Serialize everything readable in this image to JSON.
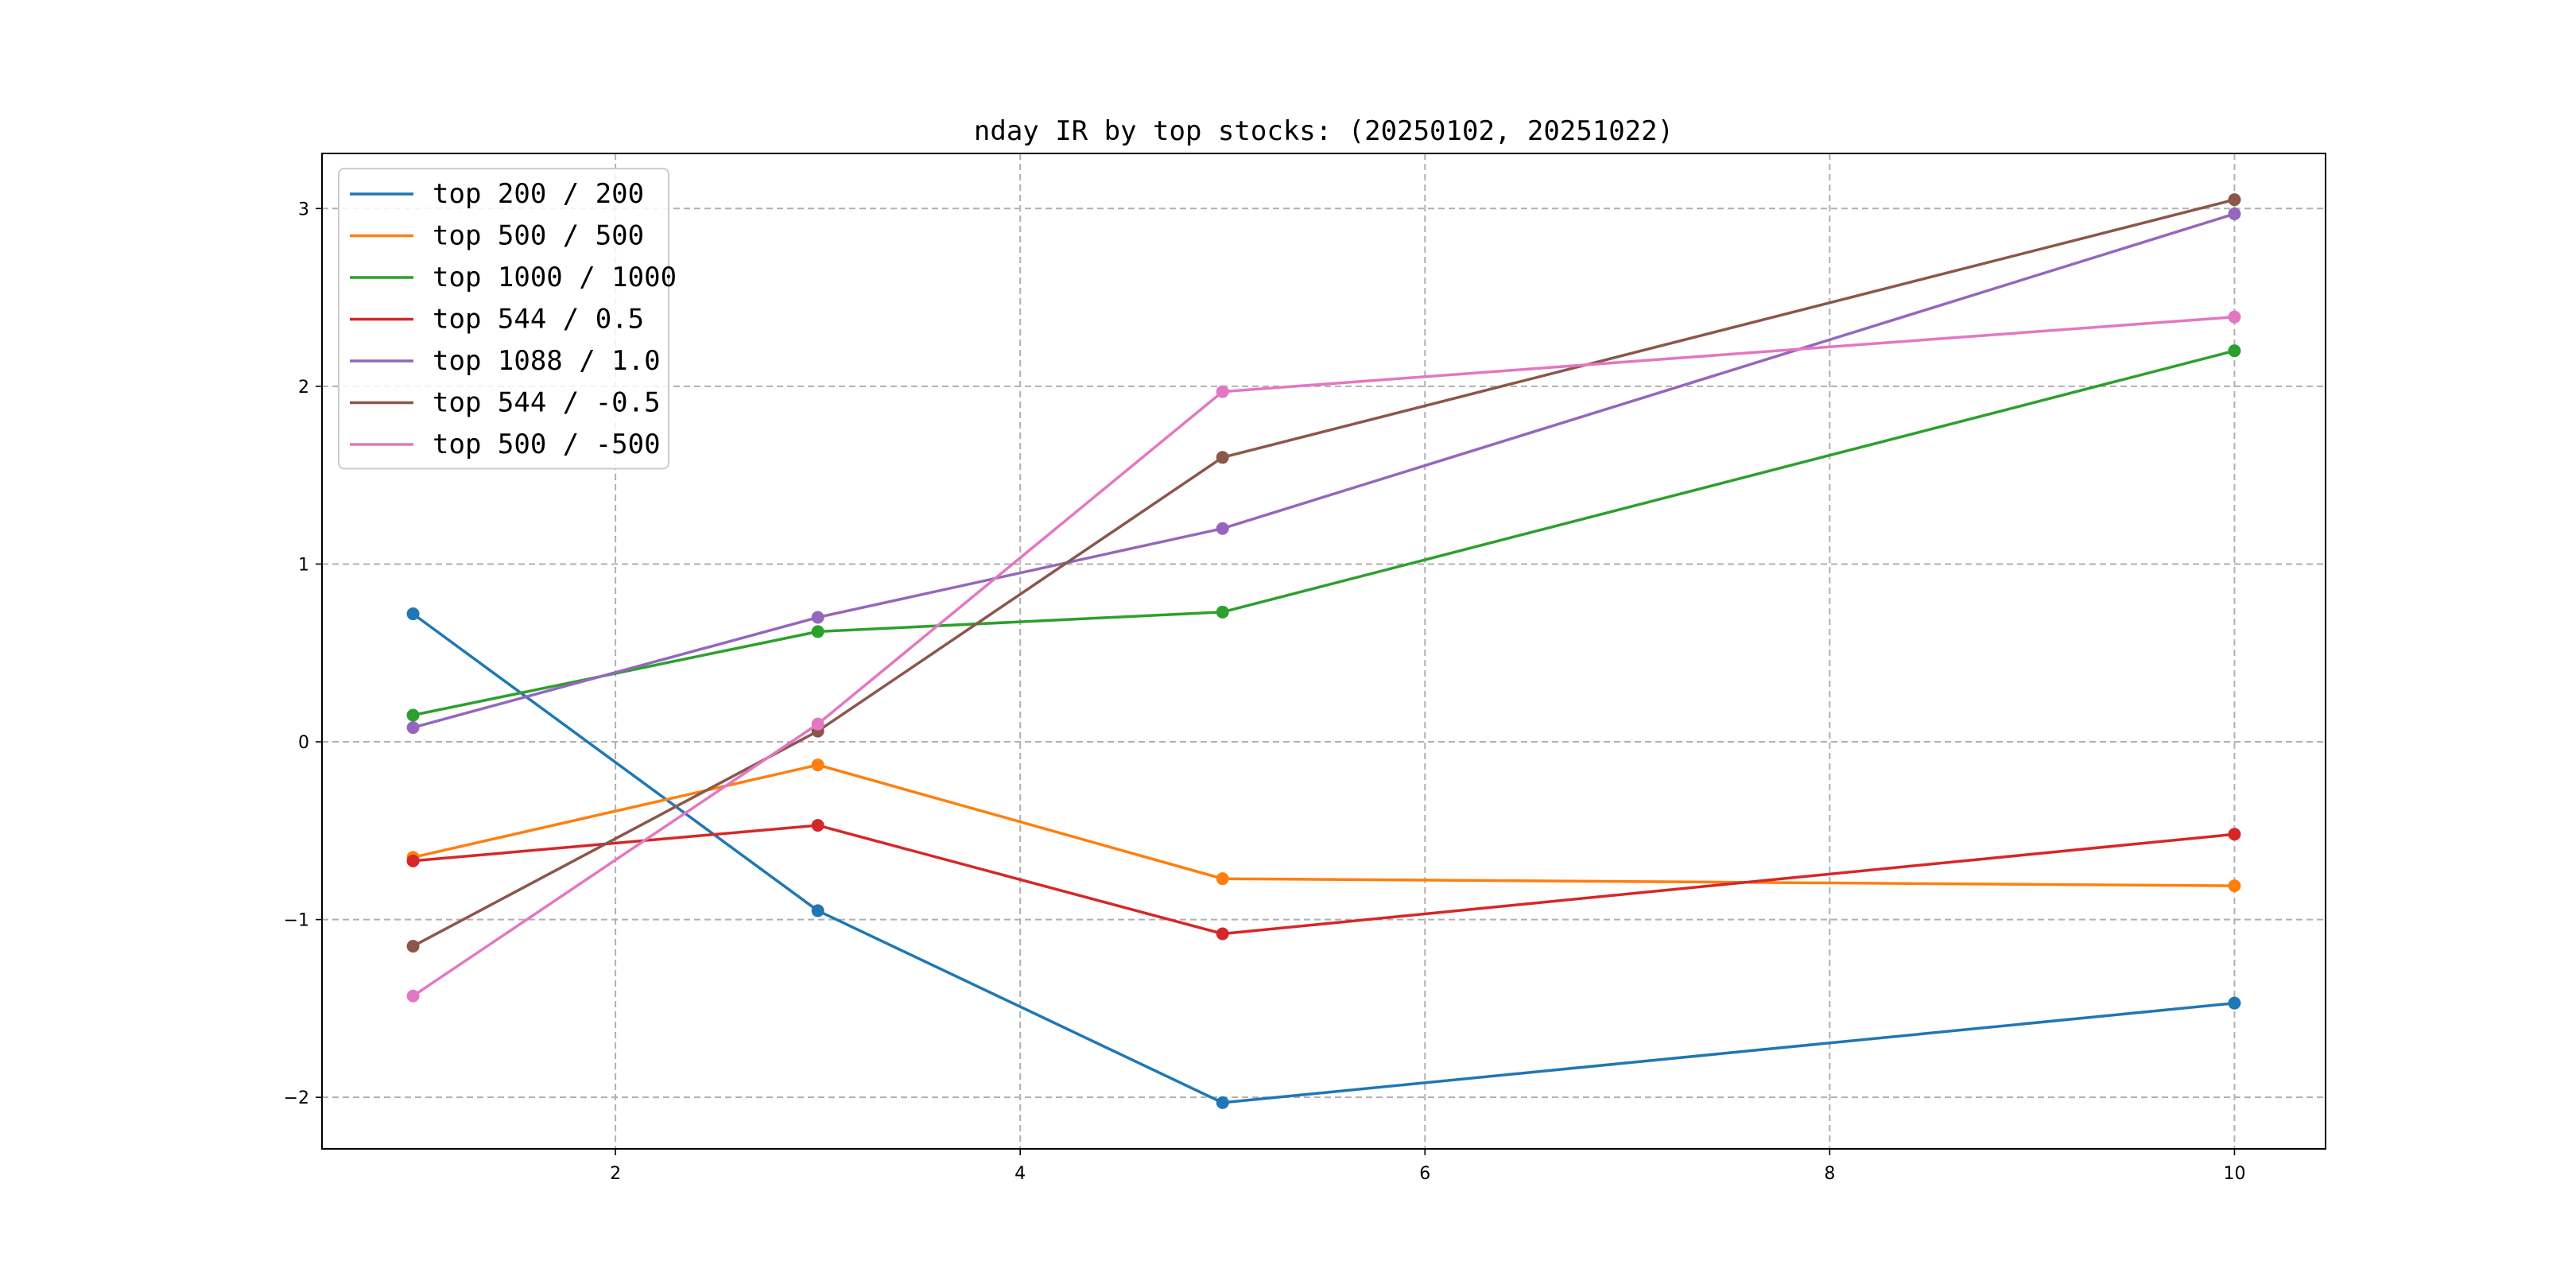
{
  "chart_data": {
    "type": "line",
    "title": "nday IR by top stocks: (20250102, 20251022)",
    "xlabel": "",
    "ylabel": "",
    "x": [
      1,
      3,
      5,
      10
    ],
    "xlim": [
      0.55,
      10.45
    ],
    "ylim": [
      -2.29,
      3.31
    ],
    "xticks": [
      2,
      4,
      6,
      8,
      10
    ],
    "yticks": [
      -2,
      -1,
      0,
      1,
      2,
      3
    ],
    "xtick_labels": [
      "2",
      "4",
      "6",
      "8",
      "10"
    ],
    "ytick_labels": [
      "−2",
      "−1",
      "0",
      "1",
      "2",
      "3"
    ],
    "grid": true,
    "legend_position": "top-left",
    "series": [
      {
        "name": "top 200 / 200",
        "color": "#1f77b4",
        "values": [
          0.72,
          -0.95,
          -2.03,
          -1.47
        ]
      },
      {
        "name": "top 500 / 500",
        "color": "#ff7f0e",
        "values": [
          -0.65,
          -0.13,
          -0.77,
          -0.81
        ]
      },
      {
        "name": "top 1000 / 1000",
        "color": "#2ca02c",
        "values": [
          0.15,
          0.62,
          0.73,
          2.2
        ]
      },
      {
        "name": "top 544 / 0.5",
        "color": "#d62728",
        "values": [
          -0.67,
          -0.47,
          -1.08,
          -0.52
        ]
      },
      {
        "name": "top 1088 / 1.0",
        "color": "#9467bd",
        "values": [
          0.08,
          0.7,
          1.2,
          2.97
        ]
      },
      {
        "name": "top 544 / -0.5",
        "color": "#8c564b",
        "values": [
          -1.15,
          0.06,
          1.6,
          3.05
        ]
      },
      {
        "name": "top 500 / -500",
        "color": "#e377c2",
        "values": [
          -1.43,
          0.1,
          1.97,
          2.39
        ]
      }
    ]
  }
}
